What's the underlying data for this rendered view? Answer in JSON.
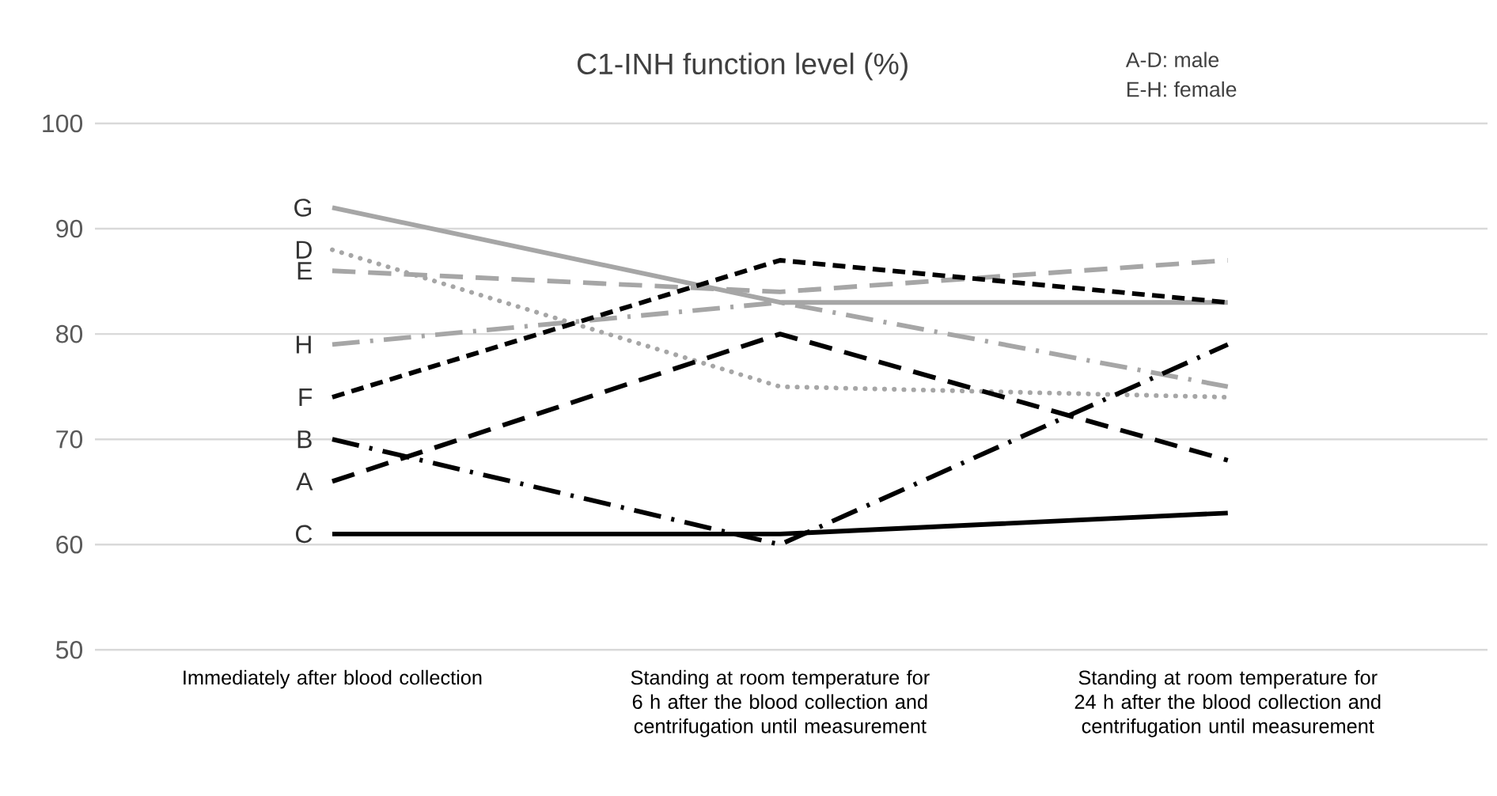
{
  "chart_data": {
    "type": "line",
    "title": "C1-INH function level (%)",
    "annotations": [
      "A-D: male",
      "E-H: female"
    ],
    "categories": [
      "Immediately after blood collection",
      "Standing at room temperature for 6 h after the blood collection and centrifugation until measurement",
      "Standing at room temperature for 24 h after the blood collection and centrifugation until measurement"
    ],
    "series": [
      {
        "name": "G",
        "color": "#a6a6a6",
        "line_style": "solid",
        "values": [
          92,
          83,
          83
        ]
      },
      {
        "name": "D",
        "color": "#a6a6a6",
        "line_style": "dotted",
        "values": [
          88,
          75,
          74
        ]
      },
      {
        "name": "E",
        "color": "#a6a6a6",
        "line_style": "longdash",
        "values": [
          86,
          84,
          87
        ]
      },
      {
        "name": "H",
        "color": "#a6a6a6",
        "line_style": "longdashdot",
        "values": [
          79,
          83,
          75
        ]
      },
      {
        "name": "F",
        "color": "#000000",
        "line_style": "dashed",
        "values": [
          74,
          87,
          83
        ]
      },
      {
        "name": "B",
        "color": "#000000",
        "line_style": "longdashdot",
        "values": [
          70,
          60,
          79
        ]
      },
      {
        "name": "A",
        "color": "#000000",
        "line_style": "longdash",
        "values": [
          66,
          80,
          68
        ]
      },
      {
        "name": "C",
        "color": "#000000",
        "line_style": "solid",
        "values": [
          61,
          61,
          63
        ]
      }
    ],
    "ylim": [
      50,
      100
    ],
    "yticks": [
      50,
      60,
      70,
      80,
      90,
      100
    ],
    "grid": "y",
    "marker": "none"
  }
}
